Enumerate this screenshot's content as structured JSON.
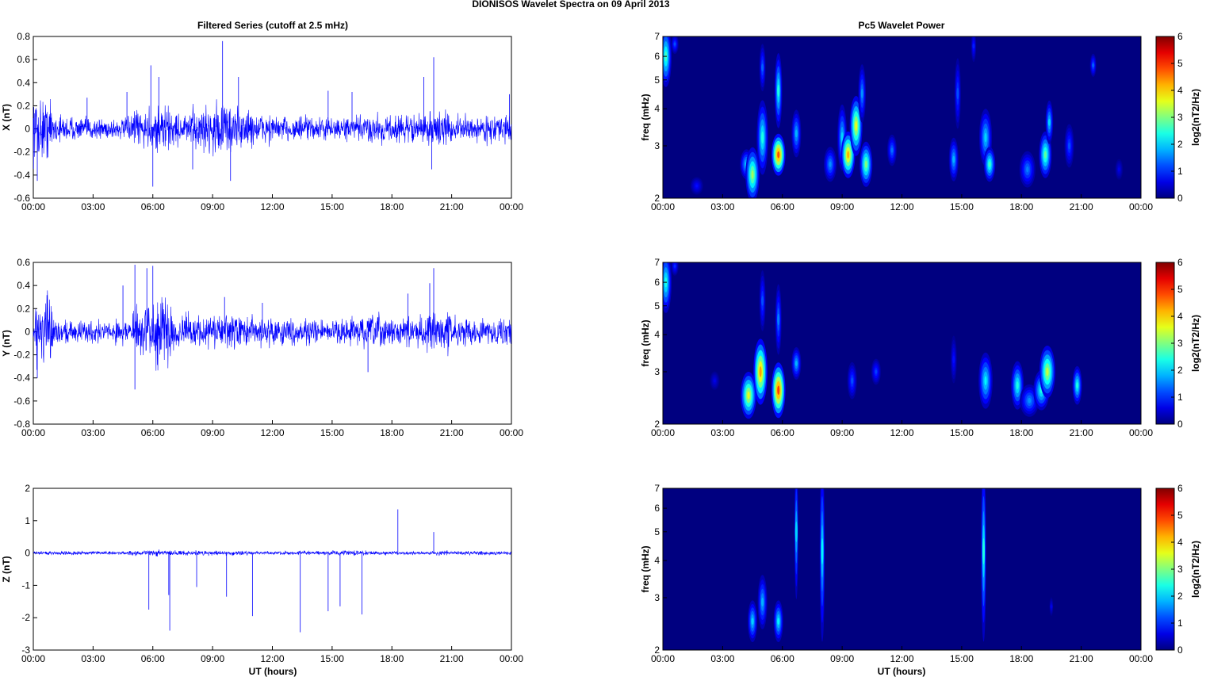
{
  "figure": {
    "title": "DIONISOS Wavelet Spectra on 09 April     2013",
    "left_title": "Filtered Series (cutoff at 2.5 mHz)",
    "right_title": "Pc5 Wavelet Power",
    "x_label_bottom": "UT (hours)",
    "x_ticks": [
      "00:00",
      "03:00",
      "06:00",
      "09:00",
      "12:00",
      "15:00",
      "18:00",
      "21:00",
      "00:00"
    ]
  },
  "chart_data": [
    {
      "type": "line",
      "id": "x",
      "ylabel": "X (nT)",
      "ylim": [
        -0.6,
        0.8
      ],
      "yticks": [
        "0.8",
        "0.6",
        "0.4",
        "0.2",
        "0",
        "-0.2",
        "-0.4",
        "-0.6"
      ],
      "xlim_hours": [
        0,
        24
      ],
      "line_color": "#0000ff",
      "amplitude_envelope": [
        0.28,
        0.12,
        0.1,
        0.1,
        0.1,
        0.18,
        0.22,
        0.15,
        0.2,
        0.25,
        0.2,
        0.15,
        0.12,
        0.12,
        0.1,
        0.1,
        0.12,
        0.15,
        0.12,
        0.15,
        0.15,
        0.12,
        0.12,
        0.12,
        0.15
      ],
      "spikes": [
        [
          0.2,
          -0.45
        ],
        [
          2.7,
          0.27
        ],
        [
          4.7,
          0.32
        ],
        [
          5.9,
          0.55
        ],
        [
          6.0,
          -0.5
        ],
        [
          6.3,
          0.45
        ],
        [
          8.0,
          -0.35
        ],
        [
          9.5,
          0.76
        ],
        [
          9.9,
          -0.45
        ],
        [
          10.3,
          0.45
        ],
        [
          14.8,
          0.33
        ],
        [
          16.0,
          0.32
        ],
        [
          19.6,
          0.45
        ],
        [
          20.1,
          0.62
        ],
        [
          20.0,
          -0.35
        ],
        [
          23.9,
          0.3
        ]
      ]
    },
    {
      "type": "line",
      "id": "y",
      "ylabel": "Y (nT)",
      "ylim": [
        -0.8,
        0.6
      ],
      "yticks": [
        "0.6",
        "0.4",
        "0.2",
        "0",
        "-0.2",
        "-0.4",
        "-0.6",
        "-0.8"
      ],
      "xlim_hours": [
        0,
        24
      ],
      "line_color": "#0000ff",
      "amplitude_envelope": [
        0.3,
        0.12,
        0.1,
        0.1,
        0.12,
        0.25,
        0.3,
        0.15,
        0.15,
        0.15,
        0.15,
        0.12,
        0.12,
        0.12,
        0.1,
        0.12,
        0.15,
        0.15,
        0.12,
        0.15,
        0.2,
        0.12,
        0.12,
        0.12,
        0.15
      ],
      "spikes": [
        [
          0.2,
          -0.4
        ],
        [
          4.5,
          0.4
        ],
        [
          5.1,
          0.58
        ],
        [
          5.1,
          -0.5
        ],
        [
          5.7,
          0.55
        ],
        [
          6.0,
          0.57
        ],
        [
          9.6,
          0.3
        ],
        [
          11.5,
          0.25
        ],
        [
          16.8,
          -0.35
        ],
        [
          18.8,
          0.33
        ],
        [
          19.9,
          0.42
        ],
        [
          20.1,
          0.55
        ]
      ]
    },
    {
      "type": "line",
      "id": "z",
      "ylabel": "Z (nT)",
      "ylim": [
        -3,
        2
      ],
      "yticks": [
        "2",
        "1",
        "0",
        "-1",
        "-2",
        "-3"
      ],
      "xlim_hours": [
        0,
        24
      ],
      "line_color": "#0000ff",
      "amplitude_envelope": [
        0.06,
        0.06,
        0.06,
        0.06,
        0.06,
        0.08,
        0.1,
        0.08,
        0.08,
        0.08,
        0.08,
        0.06,
        0.06,
        0.06,
        0.06,
        0.08,
        0.08,
        0.06,
        0.06,
        0.06,
        0.08,
        0.06,
        0.06,
        0.06,
        0.06
      ],
      "spikes": [
        [
          5.8,
          -1.75
        ],
        [
          6.8,
          -1.3
        ],
        [
          6.85,
          -2.4
        ],
        [
          8.2,
          -1.05
        ],
        [
          9.7,
          -1.35
        ],
        [
          11.0,
          -1.95
        ],
        [
          13.4,
          -2.45
        ],
        [
          14.8,
          -1.8
        ],
        [
          15.4,
          -1.65
        ],
        [
          16.5,
          -1.9
        ],
        [
          18.3,
          1.35
        ],
        [
          20.1,
          0.65
        ]
      ]
    },
    {
      "type": "heatmap",
      "id": "x-power",
      "ylabel": "freq (mHz)",
      "yticks": [
        "7",
        "6",
        "5",
        "4",
        "3",
        "2"
      ],
      "ylim_mhz": [
        2,
        7
      ],
      "ylog": true,
      "xlim_hours": [
        0,
        24
      ],
      "colorbar_label": "log2(nT2/Hz)",
      "colorbar_ticks": [
        "6",
        "5",
        "4",
        "3",
        "2",
        "1",
        "0"
      ],
      "clim": [
        0,
        6
      ],
      "colormap": "jet",
      "blobs": [
        {
          "t": 0.15,
          "f": 6.0,
          "dt": 0.18,
          "df": 1.4,
          "p": 2.6
        },
        {
          "t": 0.6,
          "f": 6.6,
          "dt": 0.12,
          "df": 0.5,
          "p": 1.2
        },
        {
          "t": 1.7,
          "f": 2.2,
          "dt": 0.2,
          "df": 0.15,
          "p": 0.8
        },
        {
          "t": 4.2,
          "f": 2.6,
          "dt": 0.2,
          "df": 0.3,
          "p": 2.0
        },
        {
          "t": 4.5,
          "f": 2.4,
          "dt": 0.22,
          "df": 0.5,
          "p": 3.2
        },
        {
          "t": 5.0,
          "f": 3.2,
          "dt": 0.18,
          "df": 0.9,
          "p": 2.4
        },
        {
          "t": 5.0,
          "f": 5.5,
          "dt": 0.1,
          "df": 1.0,
          "p": 1.3
        },
        {
          "t": 5.8,
          "f": 2.8,
          "dt": 0.22,
          "df": 0.45,
          "p": 4.8
        },
        {
          "t": 5.8,
          "f": 4.6,
          "dt": 0.12,
          "df": 1.3,
          "p": 2.4
        },
        {
          "t": 6.7,
          "f": 3.3,
          "dt": 0.15,
          "df": 0.6,
          "p": 1.8
        },
        {
          "t": 8.4,
          "f": 2.6,
          "dt": 0.2,
          "df": 0.35,
          "p": 1.6
        },
        {
          "t": 9.0,
          "f": 3.2,
          "dt": 0.15,
          "df": 0.8,
          "p": 2.0
        },
        {
          "t": 9.3,
          "f": 2.8,
          "dt": 0.22,
          "df": 0.5,
          "p": 4.2
        },
        {
          "t": 9.7,
          "f": 3.5,
          "dt": 0.2,
          "df": 0.8,
          "p": 3.6
        },
        {
          "t": 10.2,
          "f": 2.6,
          "dt": 0.2,
          "df": 0.45,
          "p": 3.0
        },
        {
          "t": 10.0,
          "f": 4.5,
          "dt": 0.12,
          "df": 1.0,
          "p": 1.6
        },
        {
          "t": 11.5,
          "f": 2.9,
          "dt": 0.15,
          "df": 0.35,
          "p": 1.4
        },
        {
          "t": 14.6,
          "f": 2.7,
          "dt": 0.15,
          "df": 0.45,
          "p": 1.8
        },
        {
          "t": 14.8,
          "f": 4.5,
          "dt": 0.1,
          "df": 1.2,
          "p": 1.2
        },
        {
          "t": 15.6,
          "f": 6.5,
          "dt": 0.08,
          "df": 0.8,
          "p": 0.9
        },
        {
          "t": 16.2,
          "f": 3.2,
          "dt": 0.2,
          "df": 0.7,
          "p": 2.0
        },
        {
          "t": 16.4,
          "f": 2.6,
          "dt": 0.18,
          "df": 0.35,
          "p": 2.6
        },
        {
          "t": 18.3,
          "f": 2.5,
          "dt": 0.25,
          "df": 0.35,
          "p": 1.5
        },
        {
          "t": 19.2,
          "f": 2.8,
          "dt": 0.2,
          "df": 0.5,
          "p": 2.8
        },
        {
          "t": 19.4,
          "f": 3.6,
          "dt": 0.12,
          "df": 0.6,
          "p": 2.0
        },
        {
          "t": 20.4,
          "f": 3.0,
          "dt": 0.15,
          "df": 0.5,
          "p": 1.2
        },
        {
          "t": 21.6,
          "f": 5.6,
          "dt": 0.1,
          "df": 0.5,
          "p": 1.3
        },
        {
          "t": 22.9,
          "f": 2.5,
          "dt": 0.12,
          "df": 0.2,
          "p": 0.6
        }
      ]
    },
    {
      "type": "heatmap",
      "id": "y-power",
      "ylabel": "freq (mHz)",
      "yticks": [
        "7",
        "6",
        "5",
        "4",
        "3",
        "2"
      ],
      "ylim_mhz": [
        2,
        7
      ],
      "ylog": true,
      "xlim_hours": [
        0,
        24
      ],
      "colorbar_label": "log2(nT2/Hz)",
      "colorbar_ticks": [
        "6",
        "5",
        "4",
        "3",
        "2",
        "1",
        "0"
      ],
      "clim": [
        0,
        6
      ],
      "colormap": "jet",
      "blobs": [
        {
          "t": 0.15,
          "f": 6.0,
          "dt": 0.18,
          "df": 1.4,
          "p": 2.4
        },
        {
          "t": 0.6,
          "f": 6.8,
          "dt": 0.12,
          "df": 0.5,
          "p": 1.0
        },
        {
          "t": 2.6,
          "f": 2.8,
          "dt": 0.15,
          "df": 0.2,
          "p": 0.6
        },
        {
          "t": 4.3,
          "f": 2.5,
          "dt": 0.25,
          "df": 0.45,
          "p": 3.6
        },
        {
          "t": 4.9,
          "f": 3.0,
          "dt": 0.22,
          "df": 0.75,
          "p": 4.3
        },
        {
          "t": 5.0,
          "f": 5.2,
          "dt": 0.1,
          "df": 1.2,
          "p": 1.2
        },
        {
          "t": 5.8,
          "f": 2.6,
          "dt": 0.22,
          "df": 0.55,
          "p": 4.9
        },
        {
          "t": 5.8,
          "f": 4.5,
          "dt": 0.1,
          "df": 1.2,
          "p": 1.5
        },
        {
          "t": 6.7,
          "f": 3.2,
          "dt": 0.15,
          "df": 0.4,
          "p": 1.8
        },
        {
          "t": 9.5,
          "f": 2.8,
          "dt": 0.15,
          "df": 0.4,
          "p": 1.2
        },
        {
          "t": 10.7,
          "f": 3.0,
          "dt": 0.15,
          "df": 0.3,
          "p": 1.1
        },
        {
          "t": 14.6,
          "f": 3.3,
          "dt": 0.1,
          "df": 0.6,
          "p": 0.8
        },
        {
          "t": 16.2,
          "f": 2.8,
          "dt": 0.22,
          "df": 0.6,
          "p": 2.2
        },
        {
          "t": 17.8,
          "f": 2.7,
          "dt": 0.2,
          "df": 0.5,
          "p": 2.4
        },
        {
          "t": 18.4,
          "f": 2.4,
          "dt": 0.3,
          "df": 0.3,
          "p": 1.6
        },
        {
          "t": 19.0,
          "f": 2.6,
          "dt": 0.25,
          "df": 0.4,
          "p": 2.4
        },
        {
          "t": 19.3,
          "f": 3.0,
          "dt": 0.25,
          "df": 0.6,
          "p": 3.4
        },
        {
          "t": 20.8,
          "f": 2.7,
          "dt": 0.15,
          "df": 0.4,
          "p": 2.4
        }
      ]
    },
    {
      "type": "heatmap",
      "id": "z-power",
      "ylabel": "freq (mHz)",
      "yticks": [
        "7",
        "6",
        "5",
        "4",
        "3",
        "2"
      ],
      "ylim_mhz": [
        2,
        7
      ],
      "ylog": true,
      "xlim_hours": [
        0,
        24
      ],
      "colorbar_label": "log2(nT2/Hz)",
      "colorbar_ticks": [
        "6",
        "5",
        "4",
        "3",
        "2",
        "1",
        "0"
      ],
      "clim": [
        0,
        6
      ],
      "colormap": "jet",
      "blobs": [
        {
          "t": 4.5,
          "f": 2.5,
          "dt": 0.15,
          "df": 0.4,
          "p": 2.0
        },
        {
          "t": 5.0,
          "f": 2.9,
          "dt": 0.15,
          "df": 0.6,
          "p": 1.8
        },
        {
          "t": 5.8,
          "f": 2.5,
          "dt": 0.15,
          "df": 0.4,
          "p": 2.2
        },
        {
          "t": 6.7,
          "f": 5.0,
          "dt": 0.06,
          "df": 2.4,
          "p": 2.0
        },
        {
          "t": 8.0,
          "f": 4.3,
          "dt": 0.08,
          "df": 2.6,
          "p": 2.2
        },
        {
          "t": 16.1,
          "f": 4.3,
          "dt": 0.08,
          "df": 2.6,
          "p": 2.4
        },
        {
          "t": 19.5,
          "f": 2.8,
          "dt": 0.06,
          "df": 0.2,
          "p": 0.6
        }
      ]
    }
  ]
}
